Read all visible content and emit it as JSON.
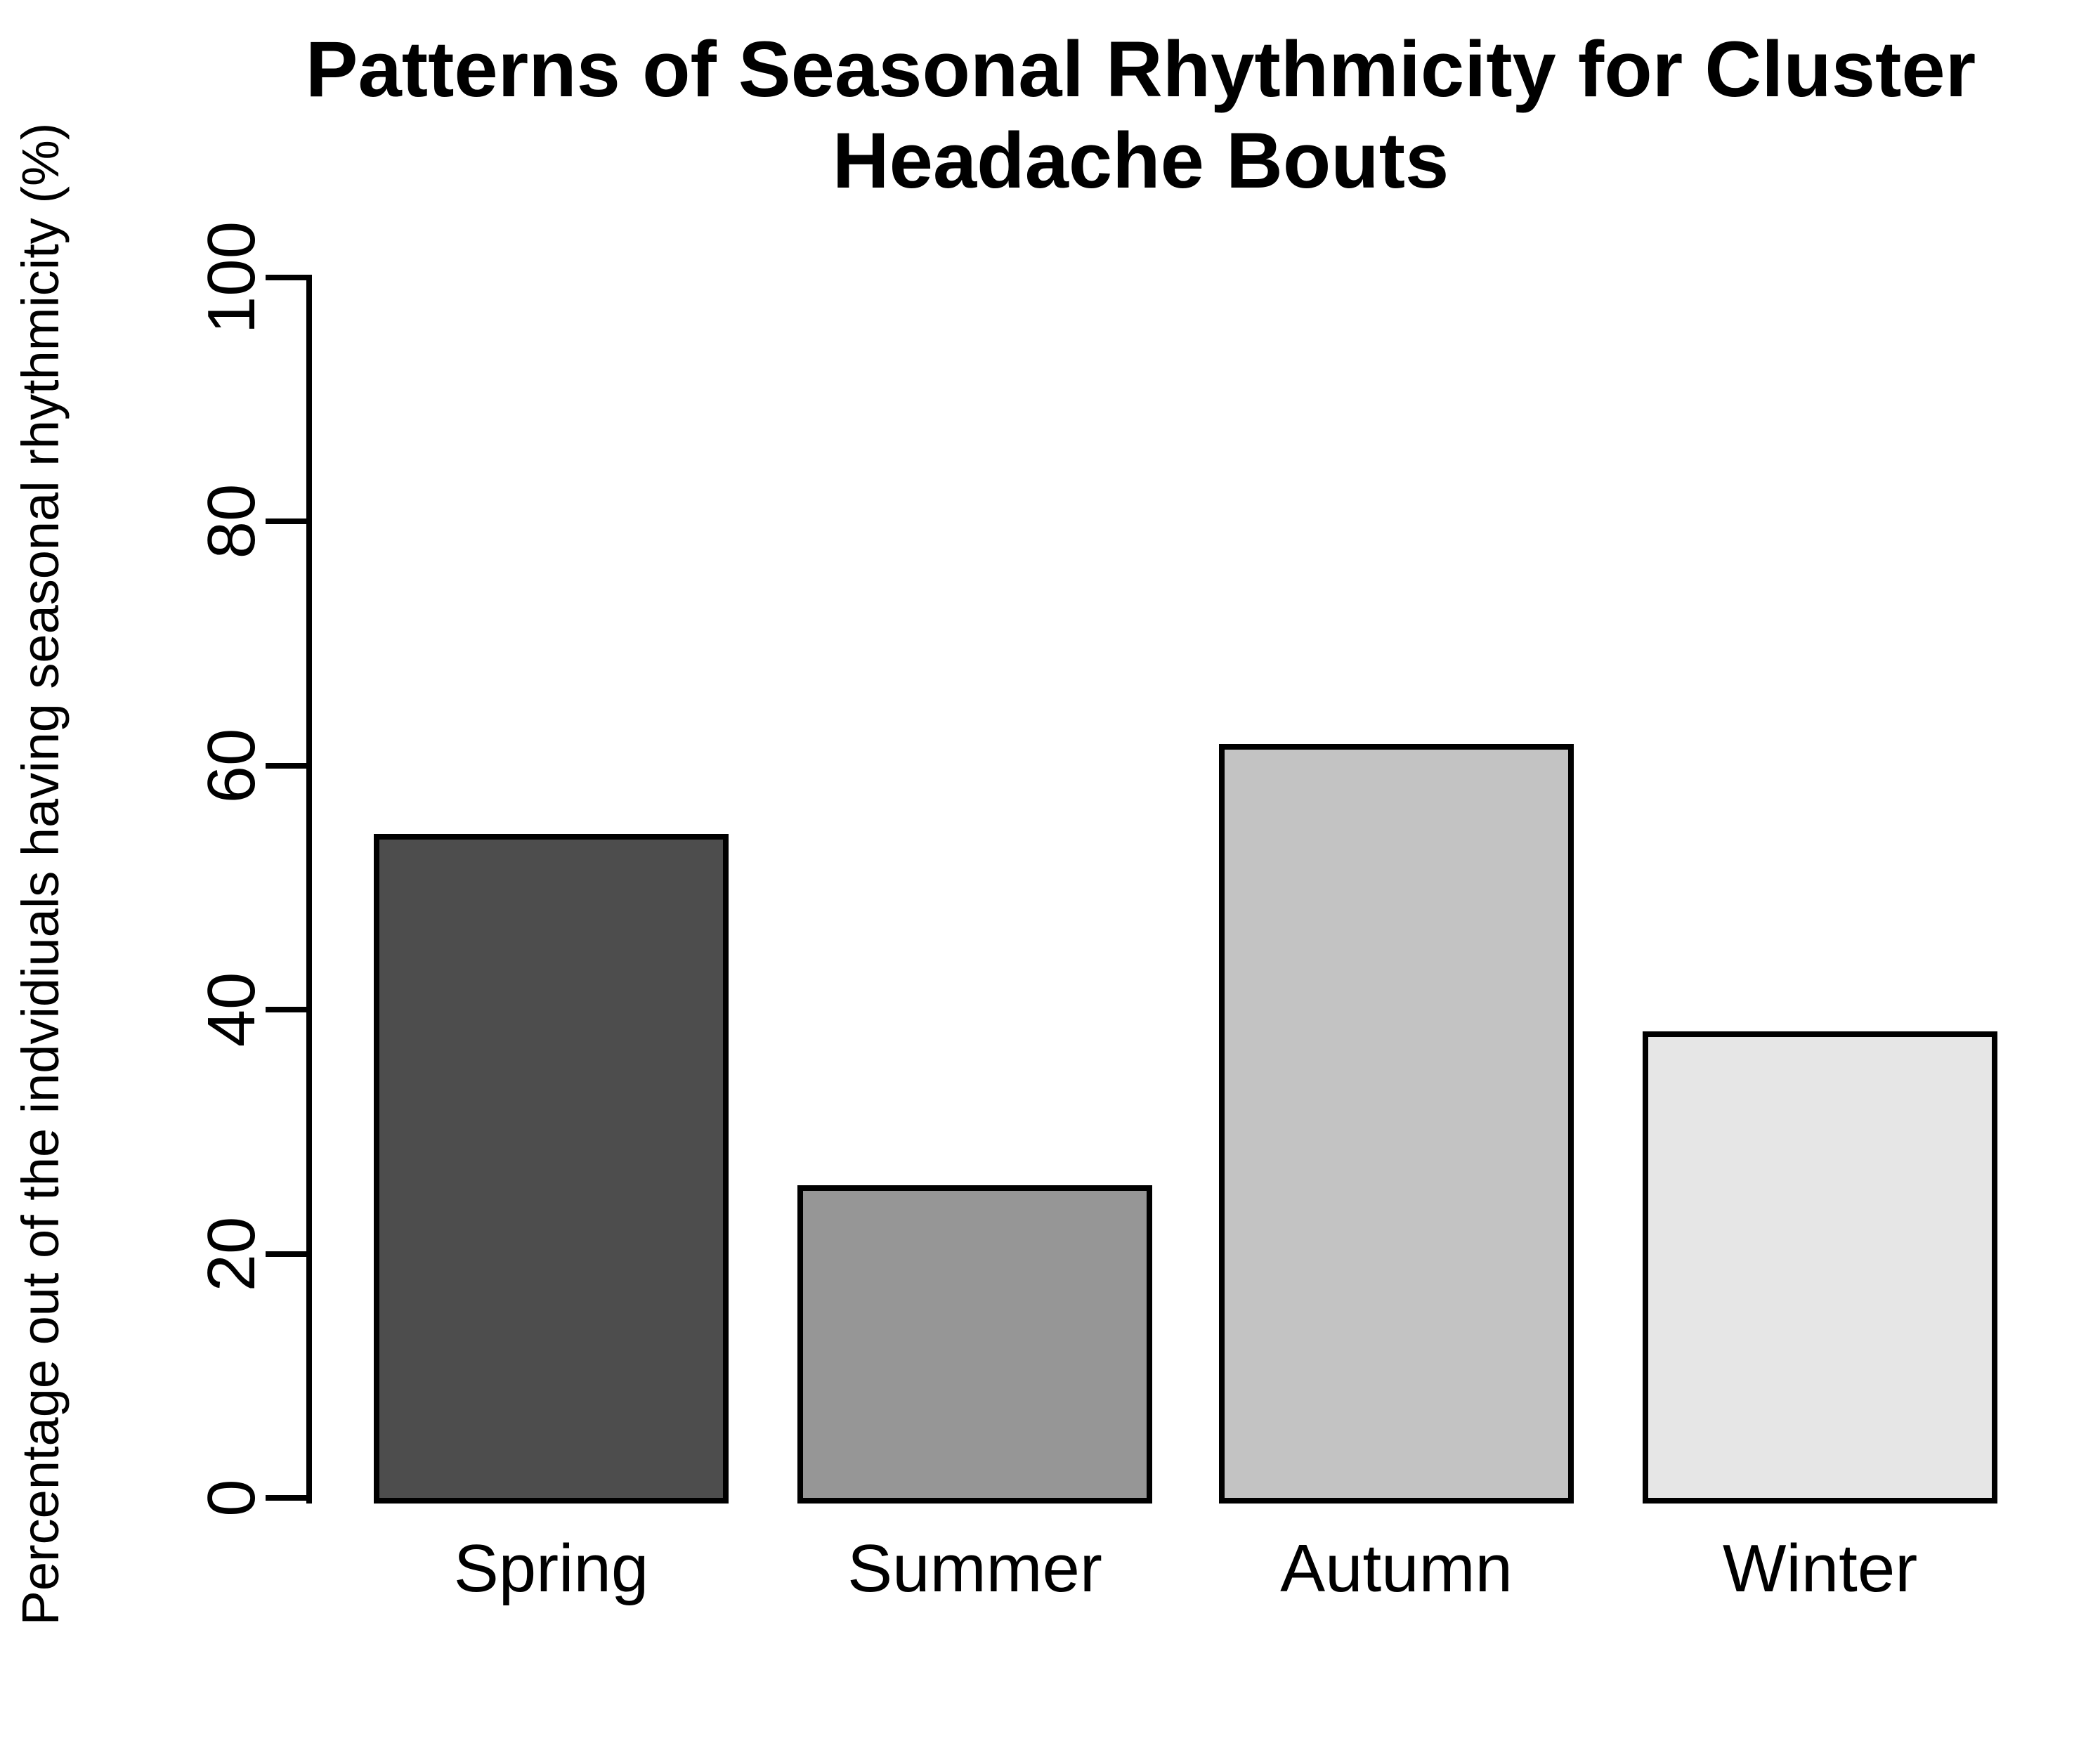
{
  "page": {
    "background": "#FFFFFF",
    "text_color": "#000000"
  },
  "chart_data": {
    "type": "bar",
    "title": "Patterns of Seasonal Rhythmicity for Cluster Headache Bouts",
    "title_lines": [
      "Patterns of Seasonal Rhythmicity for Cluster",
      "Headache Bouts"
    ],
    "xlabel": "",
    "ylabel": "Percentage out of the indvidiuals having seasonal rhythmicity (%)",
    "categories": [
      "Spring",
      "Summer",
      "Autumn",
      "Winter"
    ],
    "values": [
      54.4,
      25.6,
      61.8,
      38.2
    ],
    "bar_colors": [
      "#4D4D4D",
      "#969696",
      "#C3C3C3",
      "#E6E6E6"
    ],
    "bar_border_color": "#000000",
    "ylim": [
      0,
      100
    ],
    "yticks": [
      0,
      20,
      40,
      60,
      80,
      100
    ],
    "grid": false,
    "legend": null
  }
}
